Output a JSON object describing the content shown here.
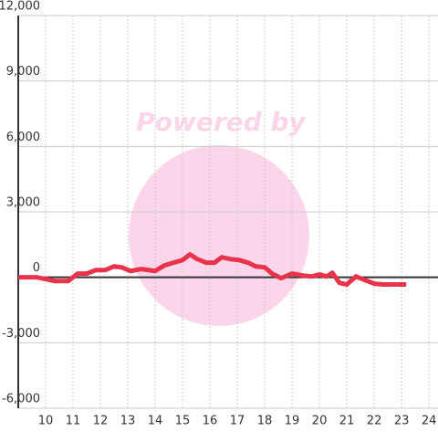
{
  "chart_data": {
    "type": "line",
    "watermark": "Powered by",
    "x": [
      9.0,
      9.67,
      10.0,
      10.33,
      10.83,
      11.17,
      11.5,
      11.83,
      12.17,
      12.5,
      12.77,
      13.1,
      13.5,
      14.0,
      14.33,
      14.67,
      15.0,
      15.27,
      15.53,
      15.87,
      16.17,
      16.43,
      16.73,
      17.07,
      17.4,
      17.67,
      18.0,
      18.27,
      18.6,
      19.0,
      19.4,
      19.73,
      20.0,
      20.27,
      20.47,
      20.73,
      21.0,
      21.33,
      21.67,
      22.0,
      22.33,
      23.17
    ],
    "series": [
      {
        "color": "#e8334a",
        "values": [
          0,
          0,
          -80,
          -170,
          -170,
          170,
          170,
          330,
          330,
          500,
          460,
          290,
          380,
          290,
          540,
          670,
          790,
          1050,
          840,
          670,
          670,
          920,
          840,
          790,
          670,
          500,
          460,
          170,
          -40,
          170,
          80,
          40,
          130,
          40,
          210,
          -250,
          -330,
          40,
          -130,
          -290,
          -330,
          -330
        ]
      }
    ],
    "xlim": [
      9,
      24.33
    ],
    "xticks": [
      10,
      11,
      12,
      13,
      14,
      15,
      16,
      17,
      18,
      19,
      20,
      21,
      22,
      23,
      24
    ],
    "ylim": [
      -6000,
      12000
    ],
    "yticks": [
      {
        "value": -6000,
        "label": "-6,000"
      },
      {
        "value": -3000,
        "label": "-3,000"
      },
      0,
      {
        "value": 3000,
        "label": "3,000"
      },
      {
        "value": 6000,
        "label": "6,000"
      },
      {
        "value": 9000,
        "label": "9,000"
      },
      {
        "value": 12000,
        "label": "12,000"
      }
    ],
    "grid": true
  }
}
